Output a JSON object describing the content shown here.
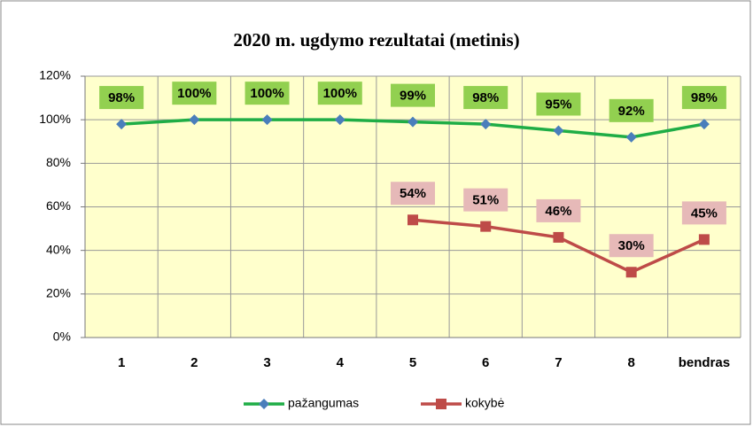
{
  "chart_data": {
    "type": "line",
    "title": "2020 m.  ugdymo  rezultatai  (metinis)",
    "categories": [
      "1",
      "2",
      "3",
      "4",
      "5",
      "6",
      "7",
      "8",
      "bendras"
    ],
    "series": [
      {
        "name": "pažangumas",
        "color": "#1fad46",
        "marker_color": "#4a7ebb",
        "label_color": "#92d050",
        "values": [
          98,
          100,
          100,
          100,
          99,
          98,
          95,
          92,
          98
        ],
        "value_labels": [
          "98%",
          "100%",
          "100%",
          "100%",
          "99%",
          "98%",
          "95%",
          "92%",
          "98%"
        ]
      },
      {
        "name": "kokybė",
        "color": "#be4b48",
        "marker_color": "#be4b48",
        "label_color": "#e6b9b8",
        "values": [
          null,
          null,
          null,
          null,
          54,
          51,
          46,
          30,
          45
        ],
        "value_labels": [
          null,
          null,
          null,
          null,
          "54%",
          "51%",
          "46%",
          "30%",
          "45%"
        ]
      }
    ],
    "ylim": [
      0,
      120
    ],
    "yticks": [
      {
        "value": 0,
        "label": "0%"
      },
      {
        "value": 20,
        "label": "20%"
      },
      {
        "value": 40,
        "label": "40%"
      },
      {
        "value": 60,
        "label": "60%"
      },
      {
        "value": 80,
        "label": "80%"
      },
      {
        "value": 100,
        "label": "100%"
      },
      {
        "value": 120,
        "label": "120%"
      }
    ],
    "grid": true,
    "plot_background": "#ffffcc",
    "legend": "bottom"
  }
}
